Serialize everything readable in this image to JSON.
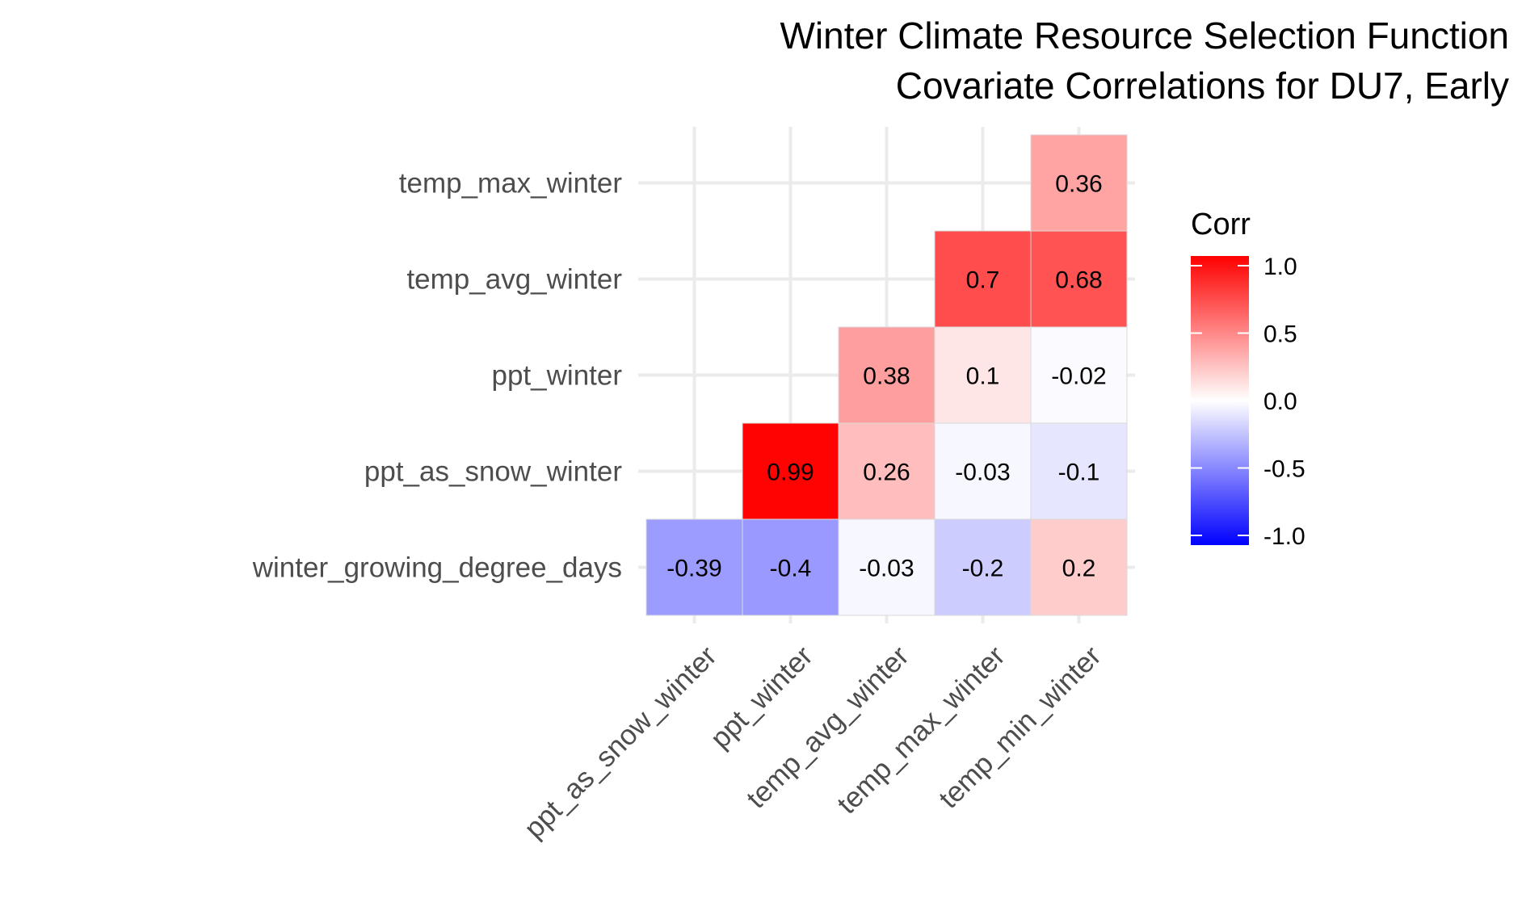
{
  "chart_data": {
    "type": "heatmap",
    "title": "Winter Climate Resource Selection Function\nCovariate Correlations for DU7, Early",
    "x_categories": [
      "ppt_as_snow_winter",
      "ppt_winter",
      "temp_avg_winter",
      "temp_max_winter",
      "temp_min_winter"
    ],
    "y_categories": [
      "winter_growing_degree_days",
      "ppt_as_snow_winter",
      "ppt_winter",
      "temp_avg_winter",
      "temp_max_winter"
    ],
    "cells": [
      {
        "x": "ppt_as_snow_winter",
        "y": "winter_growing_degree_days",
        "value": -0.39,
        "label": "-0.39"
      },
      {
        "x": "ppt_winter",
        "y": "winter_growing_degree_days",
        "value": -0.4,
        "label": "-0.4"
      },
      {
        "x": "temp_avg_winter",
        "y": "winter_growing_degree_days",
        "value": -0.03,
        "label": "-0.03"
      },
      {
        "x": "temp_max_winter",
        "y": "winter_growing_degree_days",
        "value": -0.2,
        "label": "-0.2"
      },
      {
        "x": "temp_min_winter",
        "y": "winter_growing_degree_days",
        "value": 0.2,
        "label": "0.2"
      },
      {
        "x": "ppt_winter",
        "y": "ppt_as_snow_winter",
        "value": 0.99,
        "label": "0.99"
      },
      {
        "x": "temp_avg_winter",
        "y": "ppt_as_snow_winter",
        "value": 0.26,
        "label": "0.26"
      },
      {
        "x": "temp_max_winter",
        "y": "ppt_as_snow_winter",
        "value": -0.03,
        "label": "-0.03"
      },
      {
        "x": "temp_min_winter",
        "y": "ppt_as_snow_winter",
        "value": -0.1,
        "label": "-0.1"
      },
      {
        "x": "temp_avg_winter",
        "y": "ppt_winter",
        "value": 0.38,
        "label": "0.38"
      },
      {
        "x": "temp_max_winter",
        "y": "ppt_winter",
        "value": 0.1,
        "label": "0.1"
      },
      {
        "x": "temp_min_winter",
        "y": "ppt_winter",
        "value": -0.02,
        "label": "-0.02"
      },
      {
        "x": "temp_max_winter",
        "y": "temp_avg_winter",
        "value": 0.7,
        "label": "0.7"
      },
      {
        "x": "temp_min_winter",
        "y": "temp_avg_winter",
        "value": 0.68,
        "label": "0.68"
      },
      {
        "x": "temp_min_winter",
        "y": "temp_max_winter",
        "value": 0.36,
        "label": "0.36"
      }
    ],
    "color_scale": {
      "low": "#0000ff",
      "mid": "#ffffff",
      "high": "#ff0000",
      "limits": [
        -1,
        1
      ]
    },
    "legend": {
      "title": "Corr",
      "ticks": [
        {
          "value": 1.0,
          "label": "1.0"
        },
        {
          "value": 0.5,
          "label": "0.5"
        },
        {
          "value": 0.0,
          "label": "0.0"
        },
        {
          "value": -0.5,
          "label": "-0.5"
        },
        {
          "value": -1.0,
          "label": "-1.0"
        }
      ],
      "placement": "right"
    },
    "grid": true
  }
}
